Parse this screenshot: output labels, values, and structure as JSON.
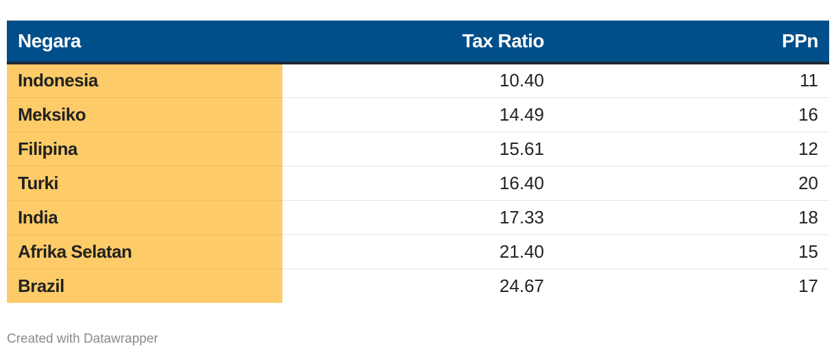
{
  "chart_data": {
    "type": "table",
    "columns": [
      "Negara",
      "Tax Ratio",
      "PPn"
    ],
    "rows": [
      {
        "negara": "Indonesia",
        "tax_ratio": "10.40",
        "ppn": "11"
      },
      {
        "negara": "Meksiko",
        "tax_ratio": "14.49",
        "ppn": "16"
      },
      {
        "negara": "Filipina",
        "tax_ratio": "15.61",
        "ppn": "12"
      },
      {
        "negara": "Turki",
        "tax_ratio": "16.40",
        "ppn": "20"
      },
      {
        "negara": "India",
        "tax_ratio": "17.33",
        "ppn": "18"
      },
      {
        "negara": "Afrika Selatan",
        "tax_ratio": "21.40",
        "ppn": "15"
      },
      {
        "negara": "Brazil",
        "tax_ratio": "24.67",
        "ppn": "17"
      }
    ],
    "colors": {
      "header_bg": "#004e8a",
      "first_column_highlight": "#fdcc68"
    }
  },
  "footer": {
    "credit": "Created with Datawrapper"
  }
}
